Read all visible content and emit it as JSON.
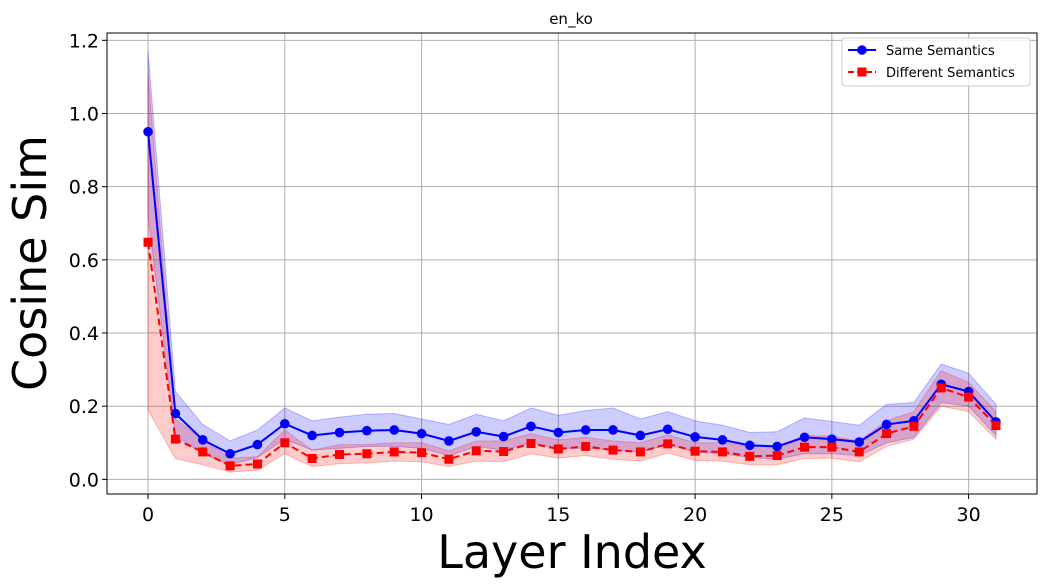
{
  "chart_data": {
    "type": "line",
    "title": "en_ko",
    "xlabel": "Layer Index",
    "ylabel": "Cosine Sim",
    "xlim": [
      -1.5,
      32.5
    ],
    "ylim": [
      -0.04,
      1.22
    ],
    "xticks": [
      0,
      5,
      10,
      15,
      20,
      25,
      30
    ],
    "yticks": [
      0.0,
      0.2,
      0.4,
      0.6,
      0.8,
      1.0,
      1.2
    ],
    "ytick_labels": [
      "0.0",
      "0.2",
      "0.4",
      "0.6",
      "0.8",
      "1.0",
      "1.2"
    ],
    "grid": true,
    "legend_position": "top-right",
    "x": [
      0,
      1,
      2,
      3,
      4,
      5,
      6,
      7,
      8,
      9,
      10,
      11,
      12,
      13,
      14,
      15,
      16,
      17,
      18,
      19,
      20,
      21,
      22,
      23,
      24,
      25,
      26,
      27,
      28,
      29,
      30,
      31
    ],
    "series": [
      {
        "name": "Same Semantics",
        "color": "#0000ff",
        "marker": "circle",
        "linestyle": "solid",
        "values": [
          0.95,
          0.18,
          0.108,
          0.07,
          0.095,
          0.152,
          0.12,
          0.128,
          0.133,
          0.135,
          0.125,
          0.105,
          0.13,
          0.117,
          0.145,
          0.128,
          0.135,
          0.135,
          0.12,
          0.137,
          0.116,
          0.108,
          0.093,
          0.09,
          0.115,
          0.11,
          0.102,
          0.15,
          0.16,
          0.26,
          0.24,
          0.157
        ],
        "band_low": [
          0.72,
          0.12,
          0.07,
          0.04,
          0.06,
          0.11,
          0.08,
          0.085,
          0.09,
          0.09,
          0.085,
          0.065,
          0.09,
          0.08,
          0.1,
          0.085,
          0.085,
          0.08,
          0.075,
          0.095,
          0.075,
          0.07,
          0.06,
          0.055,
          0.07,
          0.07,
          0.065,
          0.1,
          0.115,
          0.21,
          0.2,
          0.12
        ],
        "band_high": [
          1.17,
          0.24,
          0.15,
          0.105,
          0.135,
          0.195,
          0.16,
          0.17,
          0.178,
          0.18,
          0.165,
          0.15,
          0.178,
          0.16,
          0.195,
          0.175,
          0.188,
          0.195,
          0.165,
          0.185,
          0.16,
          0.148,
          0.128,
          0.13,
          0.168,
          0.158,
          0.148,
          0.205,
          0.21,
          0.315,
          0.29,
          0.205
        ],
        "band_color": "#0000ff"
      },
      {
        "name": "Different Semantics",
        "color": "#ff0000",
        "marker": "square",
        "linestyle": "dashed",
        "values": [
          0.648,
          0.11,
          0.075,
          0.037,
          0.042,
          0.1,
          0.057,
          0.068,
          0.07,
          0.075,
          0.073,
          0.055,
          0.078,
          0.076,
          0.098,
          0.083,
          0.09,
          0.08,
          0.075,
          0.097,
          0.077,
          0.075,
          0.063,
          0.065,
          0.088,
          0.088,
          0.075,
          0.125,
          0.145,
          0.25,
          0.225,
          0.147
        ],
        "band_low": [
          0.19,
          0.057,
          0.04,
          0.02,
          0.025,
          0.07,
          0.035,
          0.043,
          0.045,
          0.05,
          0.048,
          0.035,
          0.05,
          0.048,
          0.07,
          0.058,
          0.065,
          0.055,
          0.05,
          0.072,
          0.052,
          0.05,
          0.04,
          0.04,
          0.057,
          0.058,
          0.048,
          0.09,
          0.11,
          0.2,
          0.185,
          0.11
        ],
        "band_high": [
          1.11,
          0.165,
          0.108,
          0.058,
          0.062,
          0.135,
          0.08,
          0.095,
          0.095,
          0.1,
          0.1,
          0.078,
          0.105,
          0.105,
          0.125,
          0.108,
          0.115,
          0.105,
          0.1,
          0.122,
          0.1,
          0.1,
          0.09,
          0.09,
          0.12,
          0.118,
          0.105,
          0.16,
          0.185,
          0.297,
          0.265,
          0.185
        ],
        "band_color": "#ff0000"
      }
    ]
  }
}
